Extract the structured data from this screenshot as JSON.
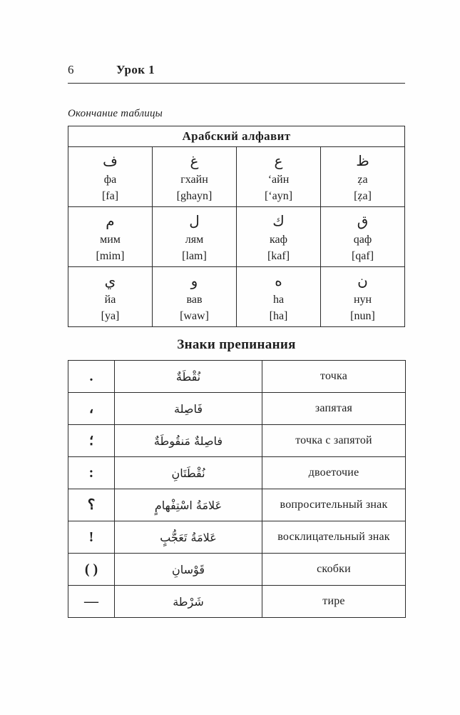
{
  "page_header": {
    "page_number": "6",
    "lesson_title": "Урок 1"
  },
  "continuation_note": "Окончание таблицы",
  "alphabet_table": {
    "title": "Арабский алфавит",
    "rows": [
      [
        {
          "letter": "ف",
          "name": "фа",
          "transcription": "[fa]"
        },
        {
          "letter": "غ",
          "name": "гхайн",
          "transcription": "[ghayn]"
        },
        {
          "letter": "ع",
          "name": "‘айн",
          "transcription": "[‘ayn]"
        },
        {
          "letter": "ظ",
          "name": "ẓа",
          "transcription": "[ẓa]"
        }
      ],
      [
        {
          "letter": "م",
          "name": "мим",
          "transcription": "[mim]"
        },
        {
          "letter": "ل",
          "name": "лям",
          "transcription": "[lam]"
        },
        {
          "letter": "ك",
          "name": "каф",
          "transcription": "[kaf]"
        },
        {
          "letter": "ق",
          "name": "qаф",
          "transcription": "[qaf]"
        }
      ],
      [
        {
          "letter": "ي",
          "name": "йа",
          "transcription": "[ya]"
        },
        {
          "letter": "و",
          "name": "вав",
          "transcription": "[waw]"
        },
        {
          "letter": "ه",
          "name": "hа",
          "transcription": "[ha]"
        },
        {
          "letter": "ن",
          "name": "нун",
          "transcription": "[nun]"
        }
      ]
    ]
  },
  "punctuation_table": {
    "title": "Знаки препинания",
    "rows": [
      {
        "symbol": ".",
        "arabic": "نُقْطَةٌ",
        "russian": "точка"
      },
      {
        "symbol": "،",
        "arabic": "فَاصِلة",
        "russian": "запятая"
      },
      {
        "symbol": "؛",
        "arabic": "فاصِلةٌ مَنقُوطَةٌ",
        "russian": "точка с запятой"
      },
      {
        "symbol": ":",
        "arabic": "نُقْطَتَانِ",
        "russian": "двоеточие"
      },
      {
        "symbol": "؟",
        "arabic": "عَلامَةُ اسْتِفْهامٍ",
        "russian": "вопросительный знак"
      },
      {
        "symbol": "!",
        "arabic": "عَلامَةُ تَعَجُّبٍ",
        "russian": "восклицательный знак"
      },
      {
        "symbol": "( )",
        "arabic": "قَوْسانِ",
        "russian": "скобки"
      },
      {
        "symbol": "—",
        "arabic": "شَرْطة",
        "russian": "тире"
      }
    ]
  }
}
